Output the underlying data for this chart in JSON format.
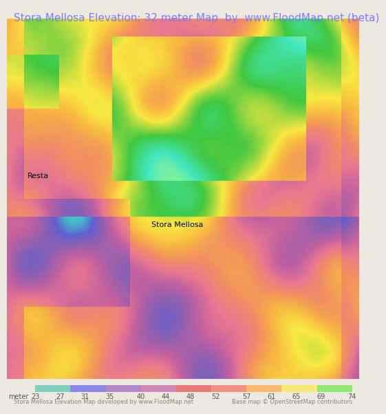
{
  "title": "Stora Mellosa Elevation: 32 meter Map  by  www.FloodMap.net (beta)",
  "title_color": "#7B7BFF",
  "title_fontsize": 11,
  "bg_color": "#EDE8E0",
  "map_bg": "#5ECFCF",
  "bottom_bar_colors": [
    "#7ECFC0",
    "#8888E8",
    "#B088C8",
    "#D088B8",
    "#E87878",
    "#F09080",
    "#F8B870",
    "#F8E878",
    "#90E870"
  ],
  "colorbar_values": [
    23,
    27,
    31,
    35,
    40,
    44,
    48,
    52,
    57,
    61,
    65,
    69,
    74
  ],
  "footer_left": "Stora Mellosa Elevation Map developed by www.FloodMap.net",
  "footer_right": "Base map © OpenStreetMap contributors",
  "label_color": "#888888",
  "map_label_resta": "Resta",
  "map_label_stora": "Stora Mellosa",
  "image_file": null
}
